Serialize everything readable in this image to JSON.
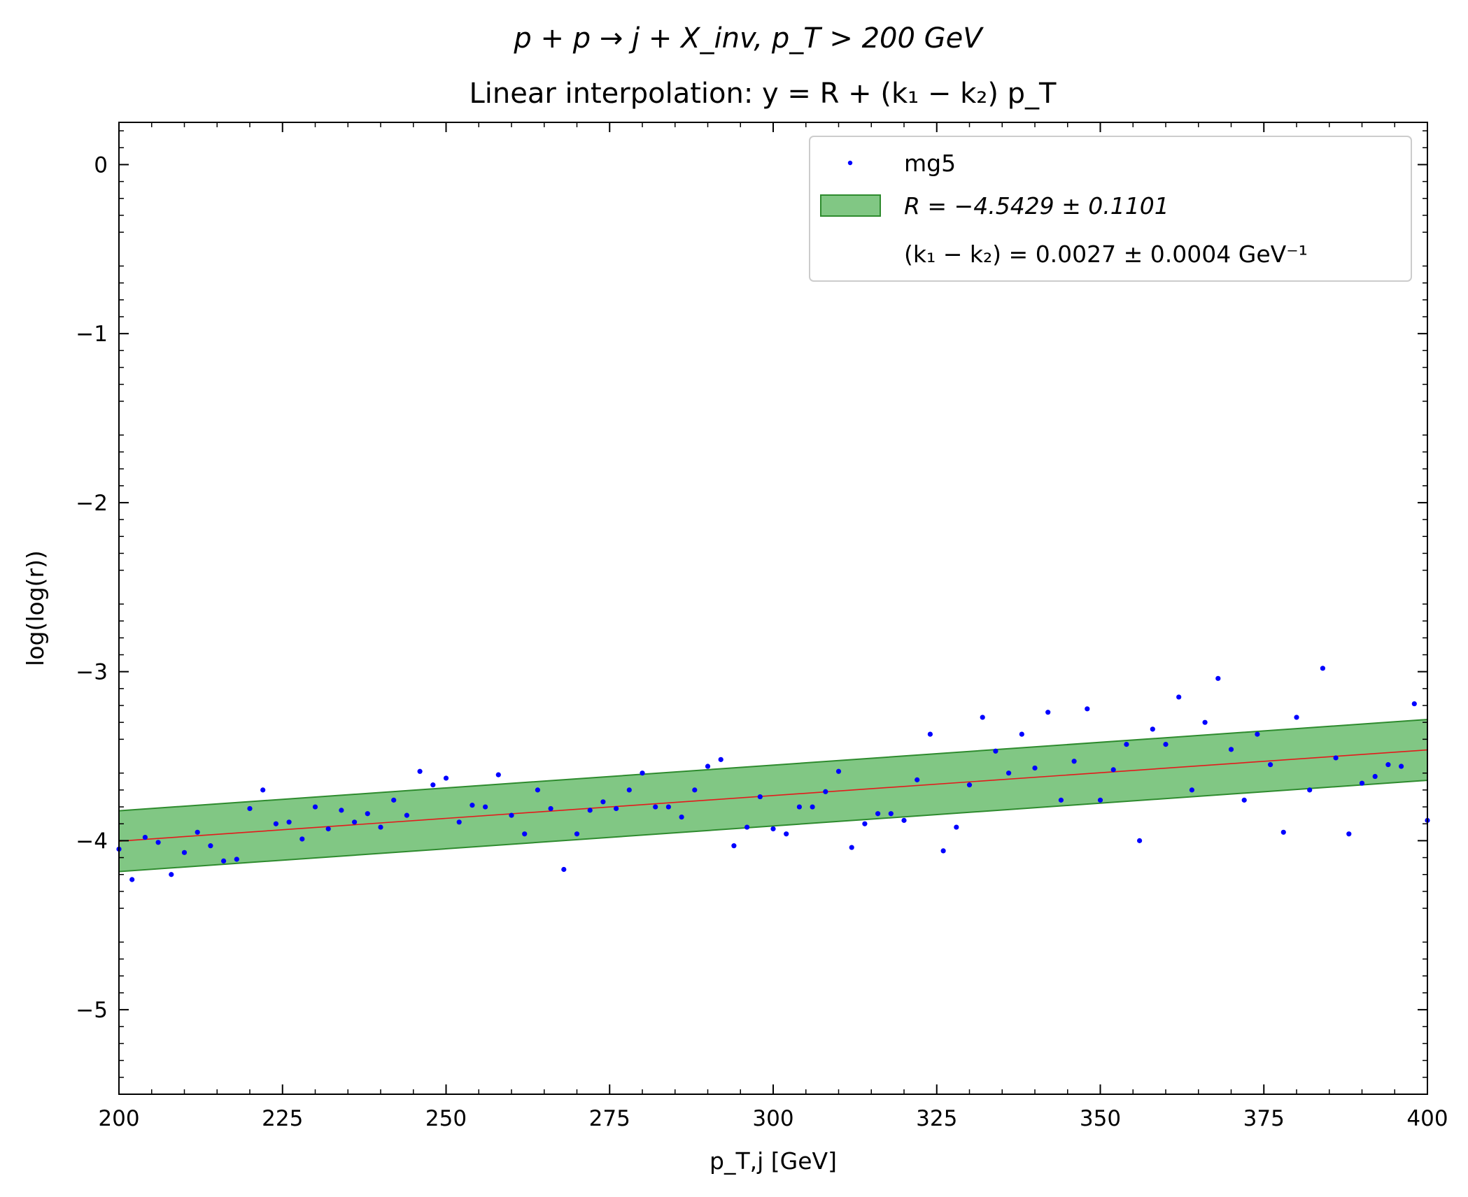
{
  "chart_data": {
    "type": "scatter",
    "title": "p + p → j + X_inv,     p_T > 200 GeV",
    "subtitle": "Linear interpolation: y = R + (k₁ − k₂) p_T",
    "xlabel": "p_T,j [GeV]",
    "ylabel": "log(log(r))",
    "xlim": [
      200,
      400
    ],
    "ylim": [
      -5.5,
      0.25
    ],
    "x_ticks": [
      "200",
      "225",
      "250",
      "275",
      "300",
      "325",
      "350",
      "375",
      "400"
    ],
    "y_ticks": [
      "0",
      "−1",
      "−2",
      "−3",
      "−4",
      "−5"
    ],
    "grid": false,
    "legend_position": "top-right",
    "legend": {
      "points_label": "mg5",
      "band_label": "R = −4.5429 ± 0.1101",
      "slope_label": "(k₁ − k₂) = 0.0027 ± 0.0004 GeV⁻¹"
    },
    "fit": {
      "R": -4.5429,
      "R_err": 0.1101,
      "slope": 0.0027,
      "slope_err": 0.0004,
      "band_halfwidth": 0.18
    },
    "colors": {
      "points": "#0000ff",
      "fit_line": "#e31a1c",
      "band_fill": "#4caf50",
      "band_edge": "#2e8b2e"
    },
    "series": [
      {
        "name": "mg5",
        "x": [
          200,
          202,
          204,
          206,
          208,
          210,
          212,
          214,
          216,
          218,
          220,
          222,
          224,
          226,
          228,
          230,
          232,
          234,
          236,
          238,
          240,
          242,
          244,
          246,
          248,
          250,
          252,
          254,
          256,
          258,
          260,
          262,
          264,
          266,
          268,
          270,
          272,
          274,
          276,
          278,
          280,
          282,
          284,
          286,
          288,
          290,
          292,
          294,
          296,
          298,
          300,
          302,
          304,
          306,
          308,
          310,
          312,
          314,
          316,
          318,
          320,
          322,
          324,
          326,
          328,
          330,
          332,
          334,
          336,
          338,
          340,
          342,
          344,
          346,
          348,
          350,
          352,
          354,
          356,
          358,
          360,
          362,
          364,
          366,
          368,
          370,
          372,
          374,
          376,
          378,
          380,
          382,
          384,
          386,
          388,
          390,
          392,
          394,
          396,
          398,
          400
        ],
        "y": [
          -4.05,
          -4.23,
          -3.98,
          -4.01,
          -4.2,
          -4.07,
          -3.95,
          -4.03,
          -4.12,
          -4.11,
          -3.81,
          -3.7,
          -3.9,
          -3.89,
          -3.99,
          -3.8,
          -3.93,
          -3.82,
          -3.89,
          -3.84,
          -3.92,
          -3.76,
          -3.85,
          -3.59,
          -3.67,
          -3.63,
          -3.89,
          -3.79,
          -3.8,
          -3.61,
          -3.85,
          -3.96,
          -3.7,
          -3.81,
          -4.17,
          -3.96,
          -3.82,
          -3.77,
          -3.81,
          -3.7,
          -3.6,
          -3.8,
          -3.8,
          -3.86,
          -3.7,
          -3.56,
          -3.52,
          -4.03,
          -3.92,
          -3.74,
          -3.93,
          -3.96,
          -3.8,
          -3.8,
          -3.71,
          -3.59,
          -4.04,
          -3.9,
          -3.84,
          -3.84,
          -3.88,
          -3.64,
          -3.37,
          -4.06,
          -3.92,
          -3.67,
          -3.27,
          -3.47,
          -3.6,
          -3.37,
          -3.57,
          -3.24,
          -3.76,
          -3.53,
          -3.22,
          -3.76,
          -3.58,
          -3.43,
          -4.0,
          -3.34,
          -3.43,
          -3.15,
          -3.7,
          -3.3,
          -3.04,
          -3.46,
          -3.76,
          -3.37,
          -3.55,
          -3.95,
          -3.27,
          -3.7,
          -2.98,
          -3.51,
          -3.96,
          -3.66,
          -3.62,
          -3.55,
          -3.56,
          -3.19,
          -3.88
        ]
      }
    ]
  }
}
